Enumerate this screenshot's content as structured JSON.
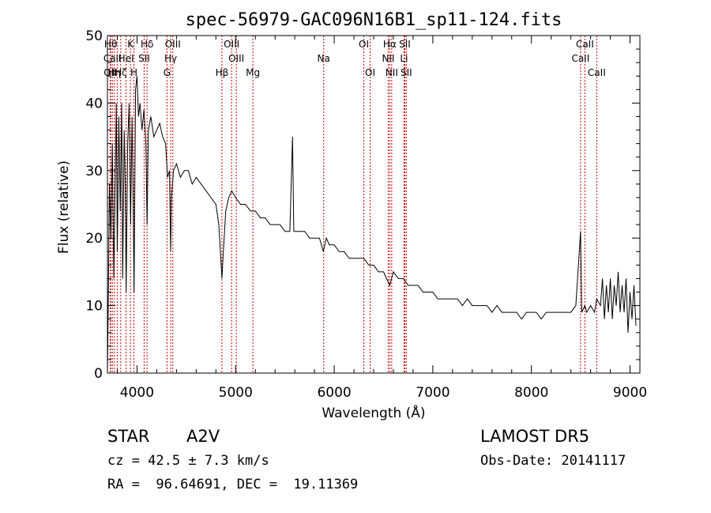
{
  "chart_data": {
    "type": "line",
    "title": "spec-56979-GAC096N16B1_sp11-124.fits",
    "xlabel": "Wavelength (Å)",
    "ylabel": "Flux (relative)",
    "xlim": [
      3700,
      9100
    ],
    "ylim": [
      0,
      50
    ],
    "x_ticks": [
      4000,
      5000,
      6000,
      7000,
      8000,
      9000
    ],
    "y_ticks": [
      0,
      10,
      20,
      30,
      40,
      50
    ],
    "grid": false,
    "line_color": "#000000",
    "marker_color": "#cc0000",
    "spectrum": [
      [
        3700,
        0
      ],
      [
        3710,
        12
      ],
      [
        3720,
        28
      ],
      [
        3735,
        20
      ],
      [
        3750,
        34
      ],
      [
        3765,
        14
      ],
      [
        3780,
        30
      ],
      [
        3790,
        40
      ],
      [
        3800,
        18
      ],
      [
        3815,
        38
      ],
      [
        3830,
        24
      ],
      [
        3845,
        40
      ],
      [
        3855,
        14
      ],
      [
        3870,
        36
      ],
      [
        3880,
        28
      ],
      [
        3890,
        12
      ],
      [
        3905,
        34
      ],
      [
        3920,
        40
      ],
      [
        3935,
        22
      ],
      [
        3950,
        38
      ],
      [
        3960,
        26
      ],
      [
        3970,
        12
      ],
      [
        3985,
        42
      ],
      [
        4000,
        44
      ],
      [
        4015,
        38
      ],
      [
        4030,
        40
      ],
      [
        4050,
        36
      ],
      [
        4070,
        39
      ],
      [
        4090,
        34
      ],
      [
        4102,
        22
      ],
      [
        4115,
        36
      ],
      [
        4140,
        38
      ],
      [
        4170,
        35
      ],
      [
        4200,
        36
      ],
      [
        4230,
        37
      ],
      [
        4260,
        35
      ],
      [
        4290,
        34
      ],
      [
        4310,
        29
      ],
      [
        4330,
        30
      ],
      [
        4341,
        18
      ],
      [
        4350,
        26
      ],
      [
        4370,
        30
      ],
      [
        4400,
        31
      ],
      [
        4440,
        29
      ],
      [
        4480,
        30
      ],
      [
        4520,
        30
      ],
      [
        4560,
        28
      ],
      [
        4600,
        29
      ],
      [
        4650,
        28
      ],
      [
        4700,
        27
      ],
      [
        4750,
        26
      ],
      [
        4800,
        25
      ],
      [
        4830,
        22
      ],
      [
        4850,
        17
      ],
      [
        4861,
        14
      ],
      [
        4875,
        18
      ],
      [
        4900,
        24
      ],
      [
        4930,
        26
      ],
      [
        4960,
        27
      ],
      [
        5000,
        26
      ],
      [
        5050,
        25
      ],
      [
        5100,
        25
      ],
      [
        5150,
        24
      ],
      [
        5200,
        24
      ],
      [
        5250,
        23
      ],
      [
        5300,
        23
      ],
      [
        5350,
        22
      ],
      [
        5400,
        22
      ],
      [
        5450,
        22
      ],
      [
        5500,
        21
      ],
      [
        5550,
        21
      ],
      [
        5577,
        35
      ],
      [
        5590,
        21
      ],
      [
        5650,
        21
      ],
      [
        5700,
        21
      ],
      [
        5750,
        20
      ],
      [
        5800,
        20
      ],
      [
        5850,
        20
      ],
      [
        5890,
        18
      ],
      [
        5920,
        20
      ],
      [
        5950,
        19
      ],
      [
        6000,
        19
      ],
      [
        6050,
        18
      ],
      [
        6100,
        18
      ],
      [
        6150,
        17
      ],
      [
        6200,
        17
      ],
      [
        6250,
        17
      ],
      [
        6300,
        17
      ],
      [
        6350,
        16
      ],
      [
        6400,
        16
      ],
      [
        6450,
        15
      ],
      [
        6500,
        15
      ],
      [
        6563,
        13
      ],
      [
        6600,
        15
      ],
      [
        6650,
        14
      ],
      [
        6700,
        14
      ],
      [
        6750,
        13
      ],
      [
        6800,
        13
      ],
      [
        6850,
        13
      ],
      [
        6900,
        12
      ],
      [
        6950,
        12
      ],
      [
        7000,
        12
      ],
      [
        7050,
        11
      ],
      [
        7100,
        11
      ],
      [
        7150,
        11
      ],
      [
        7200,
        11
      ],
      [
        7250,
        11
      ],
      [
        7300,
        10
      ],
      [
        7350,
        11
      ],
      [
        7400,
        10
      ],
      [
        7450,
        10
      ],
      [
        7500,
        10
      ],
      [
        7550,
        10
      ],
      [
        7600,
        9
      ],
      [
        7650,
        10
      ],
      [
        7700,
        9
      ],
      [
        7750,
        9
      ],
      [
        7800,
        9
      ],
      [
        7850,
        9
      ],
      [
        7900,
        8
      ],
      [
        7950,
        9
      ],
      [
        8000,
        9
      ],
      [
        8050,
        9
      ],
      [
        8100,
        8
      ],
      [
        8150,
        9
      ],
      [
        8200,
        9
      ],
      [
        8250,
        9
      ],
      [
        8300,
        9
      ],
      [
        8350,
        9
      ],
      [
        8400,
        9
      ],
      [
        8450,
        10
      ],
      [
        8498,
        21
      ],
      [
        8510,
        9
      ],
      [
        8542,
        10
      ],
      [
        8560,
        9
      ],
      [
        8600,
        10
      ],
      [
        8640,
        9
      ],
      [
        8662,
        11
      ],
      [
        8700,
        10
      ],
      [
        8720,
        14
      ],
      [
        8740,
        8
      ],
      [
        8760,
        13
      ],
      [
        8780,
        9
      ],
      [
        8800,
        14
      ],
      [
        8820,
        8
      ],
      [
        8840,
        13
      ],
      [
        8860,
        10
      ],
      [
        8880,
        15
      ],
      [
        8900,
        9
      ],
      [
        8920,
        13
      ],
      [
        8940,
        9
      ],
      [
        8960,
        14
      ],
      [
        8980,
        6
      ],
      [
        9000,
        12
      ],
      [
        9020,
        8
      ],
      [
        9040,
        13
      ],
      [
        9060,
        7
      ]
    ],
    "line_markers": [
      {
        "x": 3733,
        "label": "Hθ",
        "row": 1
      },
      {
        "x": 3728,
        "label": "OII",
        "row": 3
      },
      {
        "x": 3750,
        "label": "CaII",
        "row": 2
      },
      {
        "x": 3770,
        "label": "Hη",
        "row": 3
      },
      {
        "x": 3799,
        "label": "",
        "row": 0
      },
      {
        "x": 3835,
        "label": "Hζ",
        "row": 3
      },
      {
        "x": 3889,
        "label": "HeI",
        "row": 2
      },
      {
        "x": 3934,
        "label": "K",
        "row": 1
      },
      {
        "x": 3969,
        "label": "H",
        "row": 3
      },
      {
        "x": 4072,
        "label": "SII",
        "row": 2
      },
      {
        "x": 4102,
        "label": "Hδ",
        "row": 1
      },
      {
        "x": 4304,
        "label": "G",
        "row": 3
      },
      {
        "x": 4341,
        "label": "Hγ",
        "row": 2
      },
      {
        "x": 4363,
        "label": "OIII",
        "row": 1
      },
      {
        "x": 4861,
        "label": "Hβ",
        "row": 3
      },
      {
        "x": 4959,
        "label": "OIII",
        "row": 1
      },
      {
        "x": 5007,
        "label": "OIII",
        "row": 2
      },
      {
        "x": 5175,
        "label": "Mg",
        "row": 3
      },
      {
        "x": 5893,
        "label": "Na",
        "row": 2
      },
      {
        "x": 6300,
        "label": "OI",
        "row": 1
      },
      {
        "x": 6364,
        "label": "OI",
        "row": 3
      },
      {
        "x": 6548,
        "label": "NII",
        "row": 2
      },
      {
        "x": 6563,
        "label": "Hα",
        "row": 1
      },
      {
        "x": 6583,
        "label": "NII",
        "row": 3
      },
      {
        "x": 6708,
        "label": "Li",
        "row": 2
      },
      {
        "x": 6716,
        "label": "SII",
        "row": 1
      },
      {
        "x": 6731,
        "label": "SII",
        "row": 3
      },
      {
        "x": 8498,
        "label": "CaII",
        "row": 2
      },
      {
        "x": 8542,
        "label": "CaII",
        "row": 1
      },
      {
        "x": 8662,
        "label": "CaII",
        "row": 3
      }
    ]
  },
  "info": {
    "class_label": "STAR",
    "subclass": "A2V",
    "survey": "LAMOST DR5",
    "redshift": "cz = 42.5 ± 7.3 km/s",
    "obs_date": "Obs-Date: 20141117",
    "coords": "RA =  96.64691, DEC =  19.11369"
  }
}
